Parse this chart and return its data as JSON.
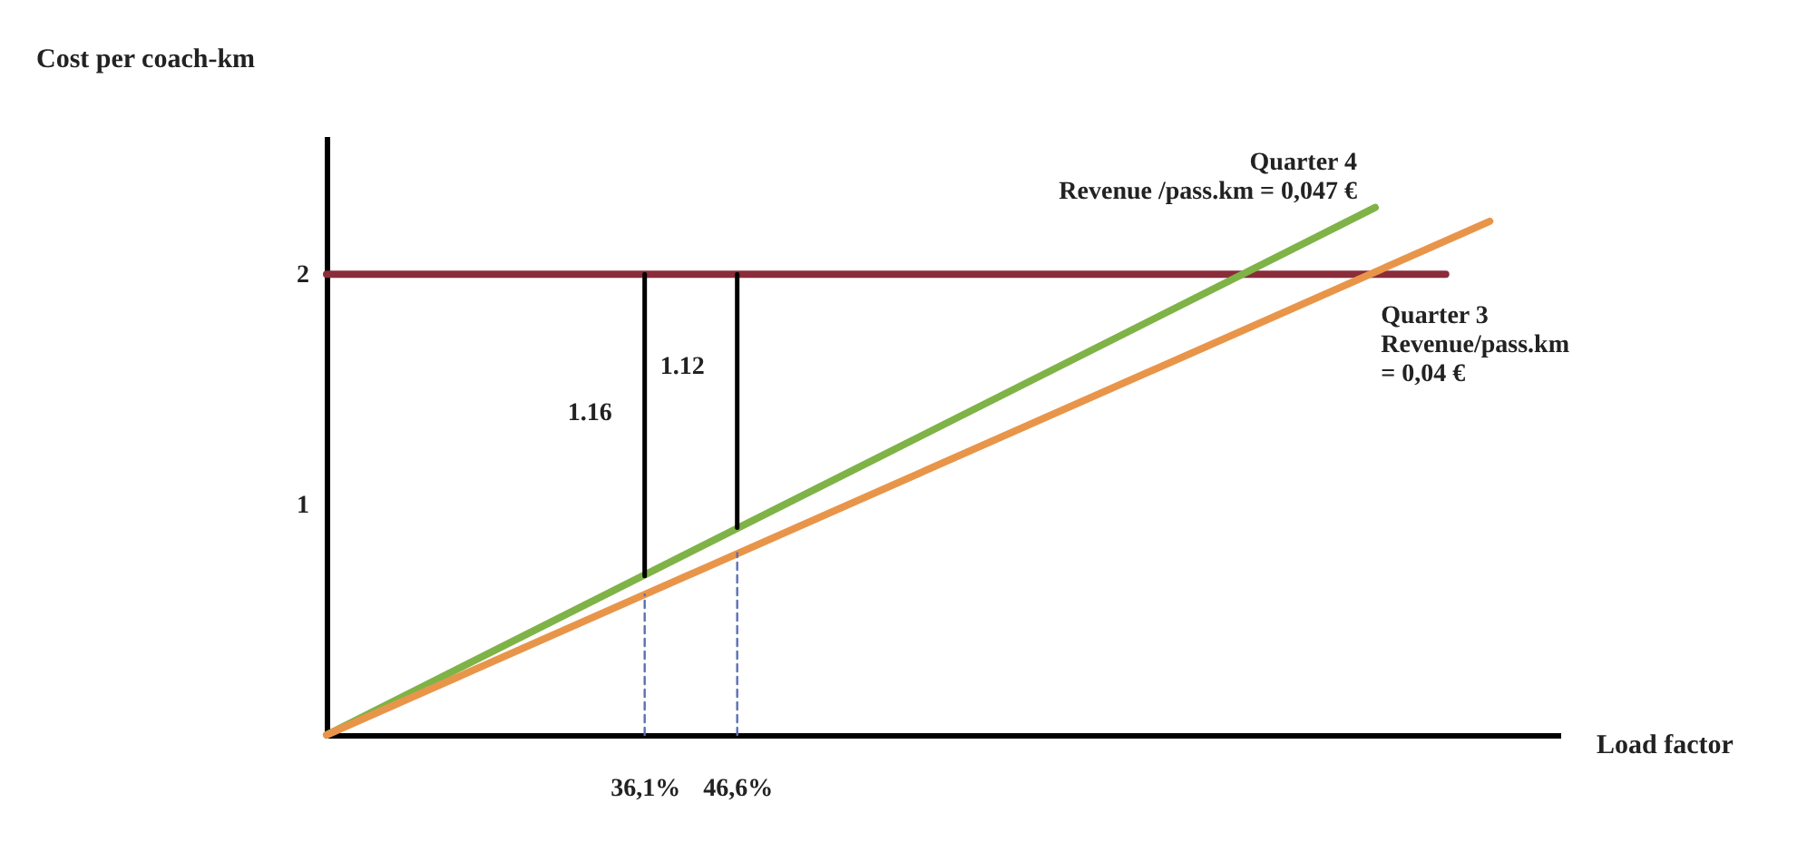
{
  "chart_data": {
    "type": "line",
    "xlabel": "Load factor",
    "ylabel": "Cost per coach-km",
    "xlim": [
      0,
      140
    ],
    "ylim": [
      0,
      2.6
    ],
    "xticks": [
      {
        "value": 36.1,
        "label": "36,1%"
      },
      {
        "value": 46.6,
        "label": "46,6%"
      }
    ],
    "yticks": [
      1,
      2
    ],
    "grid": false,
    "marker": "none",
    "series": [
      {
        "color": "#8b2c3a",
        "x": [
          0,
          127
        ],
        "values": [
          2,
          2
        ]
      },
      {
        "name": "Quarter 4\nRevenue /pass.km = 0,047 €",
        "color": "#7fb347",
        "x": [
          0,
          119
        ],
        "values": [
          0,
          2.29
        ]
      },
      {
        "name": "Quarter 3\nRevenue/pass.km\n= 0,04 €",
        "color": "#e8954a",
        "x": [
          0,
          132
        ],
        "values": [
          0,
          2.23
        ]
      },
      {
        "color": "#000000",
        "x": [
          36.1,
          36.1
        ],
        "values": [
          2,
          0.69
        ]
      },
      {
        "color": "#000000",
        "x": [
          46.6,
          46.6
        ],
        "values": [
          2,
          0.9
        ]
      },
      {
        "color": "#5b6fb5",
        "line_style": "dashed",
        "x": [
          36.1,
          36.1
        ],
        "values": [
          0,
          0.61
        ]
      },
      {
        "color": "#5b6fb5",
        "line_style": "dashed",
        "x": [
          46.6,
          46.6
        ],
        "values": [
          0,
          0.79
        ]
      }
    ],
    "annotations": [
      {
        "text": "1.16",
        "x": 36.1,
        "y": 1.4
      },
      {
        "text": "1.12",
        "x": 46.6,
        "y": 1.6
      }
    ]
  }
}
